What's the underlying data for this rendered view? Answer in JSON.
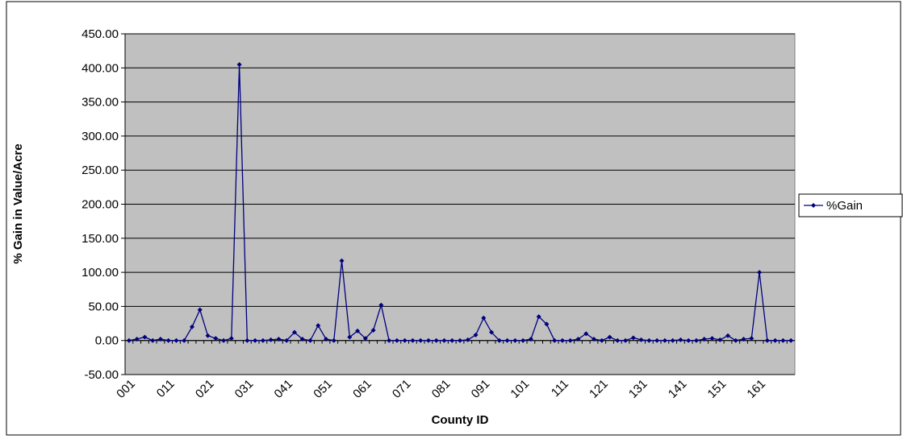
{
  "chart_data": {
    "type": "line",
    "x_label": "County ID",
    "y_label": "% Gain in Value/Acre",
    "categories": [
      "001",
      null,
      null,
      null,
      null,
      "011",
      null,
      null,
      null,
      null,
      "021",
      null,
      null,
      null,
      null,
      "031",
      null,
      null,
      null,
      null,
      "041",
      null,
      null,
      null,
      null,
      "051",
      null,
      null,
      null,
      null,
      "061",
      null,
      null,
      null,
      null,
      "071",
      null,
      null,
      null,
      null,
      "081",
      null,
      null,
      null,
      null,
      "091",
      null,
      null,
      null,
      null,
      "101",
      null,
      null,
      null,
      null,
      "111",
      null,
      null,
      null,
      null,
      "121",
      null,
      null,
      null,
      null,
      "131",
      null,
      null,
      null,
      null,
      "141",
      null,
      null,
      null,
      null,
      "151",
      null,
      null,
      null,
      null,
      "161",
      null,
      null,
      null,
      null
    ],
    "series": [
      {
        "name": "%Gain",
        "color": "#000080",
        "values": [
          0,
          2,
          5,
          0,
          2,
          0,
          0,
          0,
          20,
          45,
          7,
          3,
          0,
          3,
          405,
          0,
          0,
          0,
          1,
          2,
          0,
          12,
          2,
          0,
          22,
          2,
          0,
          117,
          5,
          14,
          3,
          15,
          52,
          0,
          0,
          0,
          0,
          0,
          0,
          0,
          0,
          0,
          0,
          1,
          8,
          33,
          12,
          0,
          0,
          0,
          0,
          2,
          35,
          24,
          0,
          0,
          0,
          2,
          10,
          2,
          0,
          5,
          0,
          0,
          4,
          1,
          0,
          0,
          0,
          0,
          1,
          0,
          0,
          2,
          3,
          1,
          7,
          0,
          2,
          3,
          100,
          0,
          0,
          0,
          0
        ]
      }
    ],
    "ylim": [
      -50,
      450
    ],
    "yticks": [
      {
        "value": -50,
        "label": "-50.00"
      },
      {
        "value": 0,
        "label": "0.00"
      },
      {
        "value": 50,
        "label": "50.00"
      },
      {
        "value": 100,
        "label": "100.00"
      },
      {
        "value": 150,
        "label": "150.00"
      },
      {
        "value": 200,
        "label": "200.00"
      },
      {
        "value": 250,
        "label": "250.00"
      },
      {
        "value": 300,
        "label": "300.00"
      },
      {
        "value": 350,
        "label": "350.00"
      },
      {
        "value": 400,
        "label": "400.00"
      },
      {
        "value": 450,
        "label": "450.00"
      }
    ],
    "grid": true,
    "legend": "right"
  }
}
